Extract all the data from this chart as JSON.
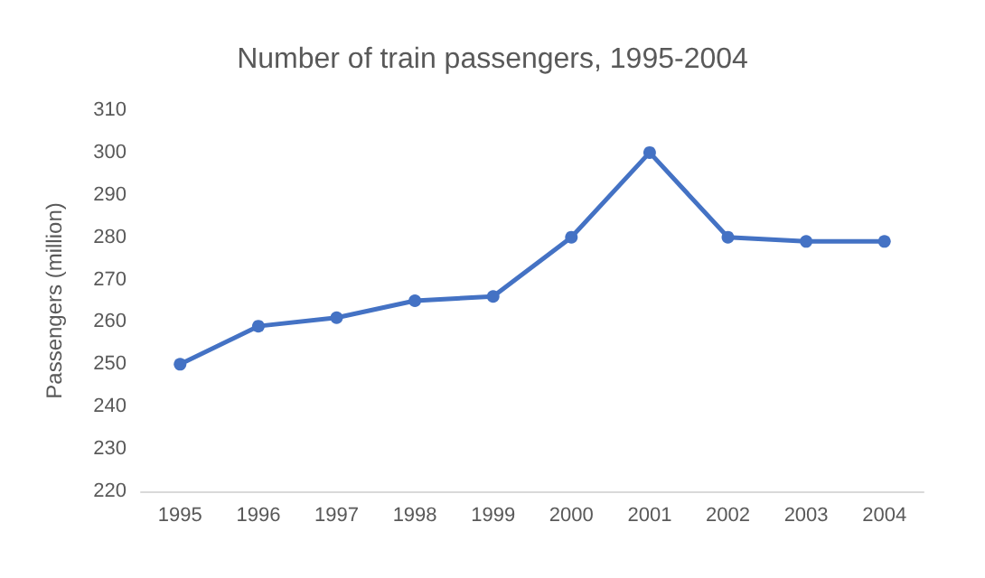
{
  "chart_data": {
    "type": "line",
    "title": "Number of train passengers, 1995-2004",
    "ylabel": "Passengers (million)",
    "categories": [
      "1995",
      "1996",
      "1997",
      "1998",
      "1999",
      "2000",
      "2001",
      "2002",
      "2003",
      "2004"
    ],
    "series": [
      {
        "color": "#4472c4",
        "values": [
          250,
          259,
          261,
          265,
          266,
          280,
          300,
          280,
          279,
          279
        ]
      }
    ],
    "ylim": [
      220,
      310
    ],
    "yticks": [
      220,
      230,
      240,
      250,
      260,
      270,
      280,
      290,
      300,
      310
    ],
    "marker": "circle",
    "line_style": "solid"
  }
}
